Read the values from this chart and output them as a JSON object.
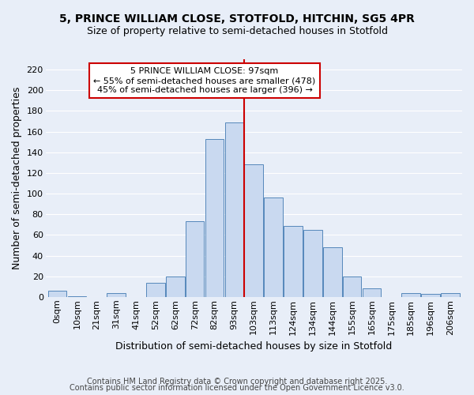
{
  "title": "5, PRINCE WILLIAM CLOSE, STOTFOLD, HITCHIN, SG5 4PR",
  "subtitle": "Size of property relative to semi-detached houses in Stotfold",
  "xlabel": "Distribution of semi-detached houses by size in Stotfold",
  "ylabel": "Number of semi-detached properties",
  "categories": [
    "0sqm",
    "10sqm",
    "21sqm",
    "31sqm",
    "41sqm",
    "52sqm",
    "62sqm",
    "72sqm",
    "82sqm",
    "93sqm",
    "103sqm",
    "113sqm",
    "124sqm",
    "134sqm",
    "144sqm",
    "155sqm",
    "165sqm",
    "175sqm",
    "185sqm",
    "196sqm",
    "206sqm"
  ],
  "values": [
    6,
    1,
    0,
    4,
    0,
    14,
    20,
    73,
    153,
    169,
    128,
    96,
    69,
    65,
    48,
    20,
    8,
    0,
    4,
    3,
    4
  ],
  "bar_color": "#c9d9f0",
  "bar_edge_color": "#5588bb",
  "vline_idx": 9.5,
  "vline_color": "#cc0000",
  "annotation_title": "5 PRINCE WILLIAM CLOSE: 97sqm",
  "annotation_line2": "← 55% of semi-detached houses are smaller (478)",
  "annotation_line3": "45% of semi-detached houses are larger (396) →",
  "annotation_box_facecolor": "#ffffff",
  "annotation_box_edgecolor": "#cc0000",
  "footer_line1": "Contains HM Land Registry data © Crown copyright and database right 2025.",
  "footer_line2": "Contains public sector information licensed under the Open Government Licence v3.0.",
  "bg_color": "#e8eef8",
  "grid_color": "#ffffff",
  "ylim": [
    0,
    230
  ],
  "yticks": [
    0,
    20,
    40,
    60,
    80,
    100,
    120,
    140,
    160,
    180,
    200,
    220
  ],
  "title_fontsize": 10,
  "subtitle_fontsize": 9,
  "xlabel_fontsize": 9,
  "ylabel_fontsize": 9,
  "tick_fontsize": 8,
  "annot_fontsize": 8,
  "footer_fontsize": 7
}
